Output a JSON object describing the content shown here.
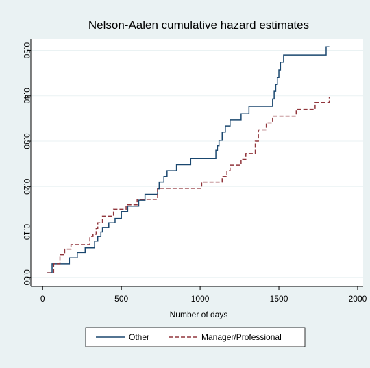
{
  "chart_data": {
    "type": "step",
    "title": "Nelson-Aalen cumulative hazard estimates",
    "x_label": "Number of days",
    "xlim": [
      -75,
      2035
    ],
    "ylim": [
      -0.02,
      0.525
    ],
    "xticks": [
      0,
      500,
      1000,
      1500,
      2000
    ],
    "yticks": [
      {
        "value": 0,
        "label": "0.00"
      },
      {
        "value": 0.1,
        "label": "0.10"
      },
      {
        "value": 0.2,
        "label": "0.20"
      },
      {
        "value": 0.3,
        "label": "0.30"
      },
      {
        "value": 0.4,
        "label": "0.40"
      },
      {
        "value": 0.5,
        "label": "0.50"
      }
    ],
    "grid": true,
    "legend": "bottom",
    "series": [
      {
        "name": "Other",
        "color": "#1a476f",
        "dash": false,
        "x": [
          30,
          60,
          170,
          220,
          270,
          330,
          350,
          370,
          380,
          420,
          460,
          500,
          540,
          610,
          650,
          730,
          740,
          770,
          790,
          850,
          940,
          1100,
          1110,
          1120,
          1140,
          1160,
          1190,
          1260,
          1310,
          1460,
          1470,
          1480,
          1490,
          1500,
          1510,
          1530,
          1800,
          1820
        ],
        "values": [
          0.01,
          0.03,
          0.043,
          0.055,
          0.065,
          0.08,
          0.09,
          0.1,
          0.11,
          0.12,
          0.13,
          0.145,
          0.157,
          0.17,
          0.183,
          0.195,
          0.21,
          0.222,
          0.235,
          0.248,
          0.262,
          0.28,
          0.29,
          0.302,
          0.32,
          0.333,
          0.347,
          0.36,
          0.377,
          0.393,
          0.41,
          0.425,
          0.44,
          0.457,
          0.474,
          0.49,
          0.508,
          0.508
        ]
      },
      {
        "name": "Manager/Professional",
        "color": "#90353b",
        "dash": true,
        "x": [
          30,
          70,
          110,
          140,
          180,
          300,
          320,
          340,
          350,
          380,
          450,
          530,
          600,
          730,
          1010,
          1140,
          1170,
          1190,
          1260,
          1290,
          1350,
          1370,
          1420,
          1460,
          1610,
          1730,
          1820
        ],
        "values": [
          0.01,
          0.03,
          0.05,
          0.062,
          0.072,
          0.09,
          0.095,
          0.108,
          0.12,
          0.135,
          0.15,
          0.16,
          0.172,
          0.196,
          0.21,
          0.222,
          0.235,
          0.247,
          0.26,
          0.273,
          0.3,
          0.325,
          0.34,
          0.355,
          0.37,
          0.385,
          0.398
        ]
      }
    ]
  }
}
